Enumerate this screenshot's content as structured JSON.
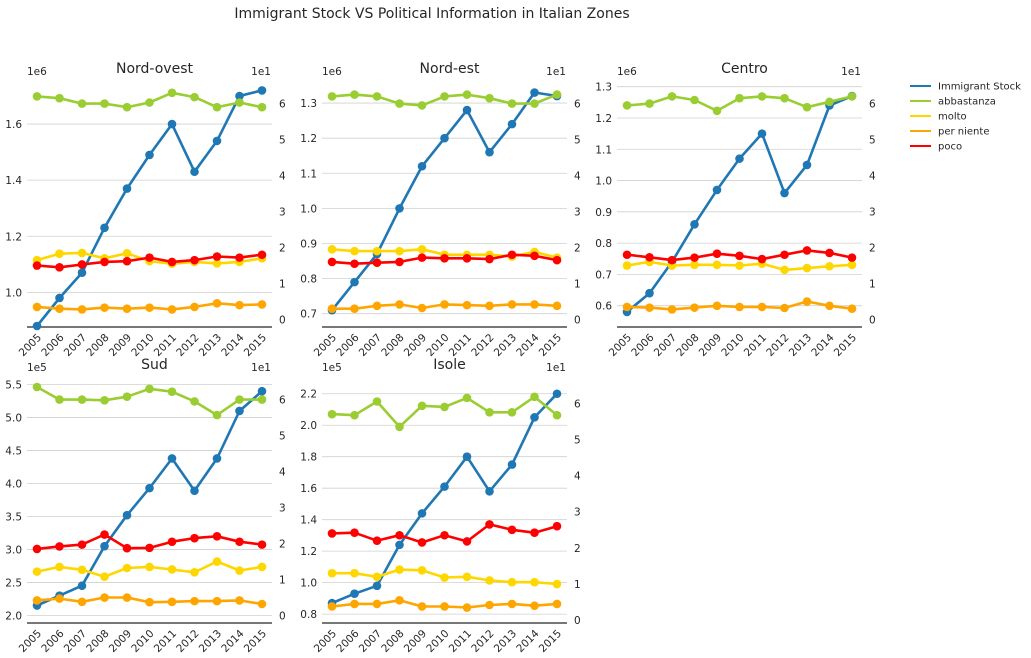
{
  "suptitle": "Immigrant Stock VS Political Information in Italian Zones",
  "legend": {
    "placement": "right",
    "items": [
      {
        "label": "Immigrant Stock",
        "color": "#1f77b4"
      },
      {
        "label": "abbastanza",
        "color": "#9acd32"
      },
      {
        "label": "molto",
        "color": "#ffd700"
      },
      {
        "label": "per niente",
        "color": "#ffa500"
      },
      {
        "label": "poco",
        "color": "#ff0000"
      }
    ]
  },
  "chart_data": [
    {
      "type": "line",
      "title": "Nord-ovest",
      "x": [
        "2005",
        "2006",
        "2007",
        "2008",
        "2009",
        "2010",
        "2011",
        "2012",
        "2013",
        "2014",
        "2015"
      ],
      "left_axis": {
        "multiplier": "1e6",
        "ylim": [
          0.88,
          1.75
        ],
        "ticks": [
          "1.0",
          "1.2",
          "1.4",
          "1.6"
        ],
        "tick_values": [
          1.0,
          1.2,
          1.4,
          1.6
        ]
      },
      "right_axis": {
        "multiplier": "1e1",
        "ylim": [
          -0.18,
          6.6
        ],
        "ticks": [
          "0",
          "1",
          "2",
          "3",
          "4",
          "5",
          "6"
        ],
        "tick_values": [
          0,
          1,
          2,
          3,
          4,
          5,
          6
        ]
      },
      "series": [
        {
          "name": "Immigrant Stock",
          "axis": "left",
          "color": "#1f77b4",
          "values": [
            0.88,
            0.98,
            1.07,
            1.23,
            1.37,
            1.49,
            1.6,
            1.43,
            1.54,
            1.7,
            1.72
          ]
        },
        {
          "name": "abbastanza",
          "axis": "right",
          "color": "#9acd32",
          "values": [
            6.2,
            6.15,
            6.0,
            6.0,
            5.9,
            6.03,
            6.3,
            6.18,
            5.9,
            6.03,
            5.9
          ]
        },
        {
          "name": "molto",
          "axis": "right",
          "color": "#ffd700",
          "values": [
            1.65,
            1.83,
            1.85,
            1.7,
            1.84,
            1.62,
            1.55,
            1.6,
            1.56,
            1.6,
            1.7
          ]
        },
        {
          "name": "per niente",
          "axis": "right",
          "color": "#ffa500",
          "values": [
            0.35,
            0.3,
            0.28,
            0.33,
            0.3,
            0.33,
            0.28,
            0.35,
            0.45,
            0.4,
            0.42
          ]
        },
        {
          "name": "poco",
          "axis": "right",
          "color": "#ff0000",
          "values": [
            1.5,
            1.45,
            1.53,
            1.6,
            1.62,
            1.72,
            1.6,
            1.65,
            1.75,
            1.72,
            1.8
          ]
        }
      ]
    },
    {
      "type": "line",
      "title": "Nord-est",
      "x": [
        "2005",
        "2006",
        "2007",
        "2008",
        "2009",
        "2010",
        "2011",
        "2012",
        "2013",
        "2014",
        "2015"
      ],
      "left_axis": {
        "multiplier": "1e6",
        "ylim": [
          0.665,
          1.36
        ],
        "ticks": [
          "0.7",
          "0.8",
          "0.9",
          "1.0",
          "1.1",
          "1.2",
          "1.3"
        ],
        "tick_values": [
          0.7,
          0.8,
          0.9,
          1.0,
          1.1,
          1.2,
          1.3
        ]
      },
      "right_axis": {
        "multiplier": "1e1",
        "ylim": [
          -0.18,
          6.6
        ],
        "ticks": [
          "0",
          "1",
          "2",
          "3",
          "4",
          "5",
          "6"
        ],
        "tick_values": [
          0,
          1,
          2,
          3,
          4,
          5,
          6
        ]
      },
      "series": [
        {
          "name": "Immigrant Stock",
          "axis": "left",
          "color": "#1f77b4",
          "values": [
            0.71,
            0.79,
            0.87,
            1.0,
            1.12,
            1.2,
            1.28,
            1.16,
            1.24,
            1.33,
            1.32
          ]
        },
        {
          "name": "abbastanza",
          "axis": "right",
          "color": "#9acd32",
          "values": [
            6.2,
            6.25,
            6.2,
            6.0,
            5.95,
            6.2,
            6.25,
            6.15,
            6.0,
            6.0,
            6.25
          ]
        },
        {
          "name": "molto",
          "axis": "right",
          "color": "#ffd700",
          "values": [
            1.95,
            1.9,
            1.9,
            1.9,
            1.95,
            1.8,
            1.8,
            1.8,
            1.75,
            1.88,
            1.72
          ]
        },
        {
          "name": "per niente",
          "axis": "right",
          "color": "#ffa500",
          "values": [
            0.3,
            0.3,
            0.38,
            0.42,
            0.32,
            0.42,
            0.4,
            0.38,
            0.42,
            0.42,
            0.38
          ]
        },
        {
          "name": "poco",
          "axis": "right",
          "color": "#ff0000",
          "values": [
            1.6,
            1.55,
            1.58,
            1.6,
            1.72,
            1.7,
            1.7,
            1.68,
            1.8,
            1.77,
            1.65
          ]
        }
      ]
    },
    {
      "type": "line",
      "title": "Centro",
      "x": [
        "2005",
        "2006",
        "2007",
        "2008",
        "2009",
        "2010",
        "2011",
        "2012",
        "2013",
        "2014",
        "2015"
      ],
      "left_axis": {
        "multiplier": "1e6",
        "ylim": [
          0.535,
          1.315
        ],
        "ticks": [
          "0.6",
          "0.7",
          "0.8",
          "0.9",
          "1.0",
          "1.1",
          "1.2",
          "1.3"
        ],
        "tick_values": [
          0.6,
          0.7,
          0.8,
          0.9,
          1.0,
          1.1,
          1.2,
          1.3
        ]
      },
      "right_axis": {
        "multiplier": "1e1",
        "ylim": [
          -0.18,
          6.6
        ],
        "ticks": [
          "0",
          "1",
          "2",
          "3",
          "4",
          "5",
          "6"
        ],
        "tick_values": [
          0,
          1,
          2,
          3,
          4,
          5,
          6
        ]
      },
      "series": [
        {
          "name": "Immigrant Stock",
          "axis": "left",
          "color": "#1f77b4",
          "values": [
            0.58,
            0.64,
            0.74,
            0.86,
            0.97,
            1.07,
            1.15,
            0.96,
            1.05,
            1.24,
            1.27
          ]
        },
        {
          "name": "abbastanza",
          "axis": "right",
          "color": "#9acd32",
          "values": [
            5.95,
            6.0,
            6.2,
            6.1,
            5.8,
            6.15,
            6.2,
            6.15,
            5.9,
            6.05,
            6.2
          ]
        },
        {
          "name": "molto",
          "axis": "right",
          "color": "#ffd700",
          "values": [
            1.5,
            1.6,
            1.5,
            1.52,
            1.52,
            1.5,
            1.55,
            1.38,
            1.43,
            1.48,
            1.52
          ]
        },
        {
          "name": "per niente",
          "axis": "right",
          "color": "#ffa500",
          "values": [
            0.35,
            0.33,
            0.28,
            0.33,
            0.38,
            0.35,
            0.35,
            0.32,
            0.5,
            0.38,
            0.3
          ]
        },
        {
          "name": "poco",
          "axis": "right",
          "color": "#ff0000",
          "values": [
            1.8,
            1.73,
            1.65,
            1.72,
            1.83,
            1.77,
            1.68,
            1.8,
            1.92,
            1.85,
            1.72
          ]
        }
      ]
    },
    {
      "type": "line",
      "title": "Sud",
      "x": [
        "2005",
        "2006",
        "2007",
        "2008",
        "2009",
        "2010",
        "2011",
        "2012",
        "2013",
        "2014",
        "2015"
      ],
      "left_axis": {
        "multiplier": "1e5",
        "ylim": [
          1.9,
          5.6
        ],
        "ticks": [
          "2.0",
          "2.5",
          "3.0",
          "3.5",
          "4.0",
          "4.5",
          "5.0",
          "5.5"
        ],
        "tick_values": [
          2.0,
          2.5,
          3.0,
          3.5,
          4.0,
          4.5,
          5.0,
          5.5
        ]
      },
      "right_axis": {
        "multiplier": "1e1",
        "ylim": [
          -0.18,
          6.6
        ],
        "ticks": [
          "0",
          "1",
          "2",
          "3",
          "4",
          "5",
          "6"
        ],
        "tick_values": [
          0,
          1,
          2,
          3,
          4,
          5,
          6
        ]
      },
      "series": [
        {
          "name": "Immigrant Stock",
          "axis": "left",
          "color": "#1f77b4",
          "values": [
            2.15,
            2.3,
            2.45,
            3.05,
            3.52,
            3.93,
            4.38,
            3.89,
            4.38,
            5.1,
            5.4
          ]
        },
        {
          "name": "abbastanza",
          "axis": "right",
          "color": "#9acd32",
          "values": [
            6.35,
            6.0,
            6.0,
            5.98,
            6.08,
            6.3,
            6.22,
            5.95,
            5.57,
            6.0,
            6.0
          ]
        },
        {
          "name": "molto",
          "axis": "right",
          "color": "#ffd700",
          "values": [
            1.22,
            1.35,
            1.27,
            1.08,
            1.32,
            1.35,
            1.28,
            1.2,
            1.5,
            1.25,
            1.35
          ]
        },
        {
          "name": "per niente",
          "axis": "right",
          "color": "#ffa500",
          "values": [
            0.42,
            0.47,
            0.38,
            0.5,
            0.5,
            0.37,
            0.38,
            0.4,
            0.4,
            0.42,
            0.32
          ]
        },
        {
          "name": "poco",
          "axis": "right",
          "color": "#ff0000",
          "values": [
            1.85,
            1.92,
            1.97,
            2.25,
            1.87,
            1.88,
            2.05,
            2.15,
            2.2,
            2.05,
            1.97
          ]
        }
      ]
    },
    {
      "type": "line",
      "title": "Isole",
      "x": [
        "2005",
        "2006",
        "2007",
        "2008",
        "2009",
        "2010",
        "2011",
        "2012",
        "2013",
        "2014",
        "2015"
      ],
      "left_axis": {
        "multiplier": "1e5",
        "ylim": [
          0.75,
          2.3
        ],
        "ticks": [
          "0.8",
          "1.0",
          "1.2",
          "1.4",
          "1.6",
          "1.8",
          "2.0",
          "2.2"
        ],
        "tick_values": [
          0.8,
          1.0,
          1.2,
          1.4,
          1.6,
          1.8,
          2.0,
          2.2
        ]
      },
      "right_axis": {
        "multiplier": "1e1",
        "ylim": [
          -0.05,
          6.7
        ],
        "ticks": [
          "0",
          "1",
          "2",
          "3",
          "4",
          "5",
          "6"
        ],
        "tick_values": [
          0,
          1,
          2,
          3,
          4,
          5,
          6
        ]
      },
      "series": [
        {
          "name": "Immigrant Stock",
          "axis": "left",
          "color": "#1f77b4",
          "values": [
            0.87,
            0.93,
            0.98,
            1.24,
            1.44,
            1.61,
            1.8,
            1.58,
            1.75,
            2.05,
            2.2
          ]
        },
        {
          "name": "abbastanza",
          "axis": "right",
          "color": "#9acd32",
          "values": [
            5.7,
            5.67,
            6.05,
            5.35,
            5.93,
            5.9,
            6.15,
            5.75,
            5.75,
            6.18,
            5.67
          ]
        },
        {
          "name": "molto",
          "axis": "right",
          "color": "#ffd700",
          "values": [
            1.3,
            1.3,
            1.2,
            1.4,
            1.38,
            1.18,
            1.2,
            1.1,
            1.05,
            1.05,
            1.0
          ]
        },
        {
          "name": "per niente",
          "axis": "right",
          "color": "#ffa500",
          "values": [
            0.38,
            0.45,
            0.45,
            0.55,
            0.38,
            0.38,
            0.35,
            0.42,
            0.45,
            0.4,
            0.45
          ]
        },
        {
          "name": "poco",
          "axis": "right",
          "color": "#ff0000",
          "values": [
            2.4,
            2.42,
            2.2,
            2.35,
            2.15,
            2.35,
            2.18,
            2.65,
            2.5,
            2.42,
            2.6
          ]
        }
      ]
    }
  ]
}
